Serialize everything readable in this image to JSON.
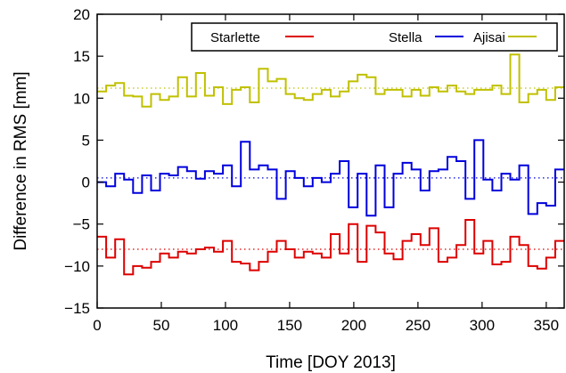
{
  "chart_data": {
    "type": "line",
    "style": "step",
    "xlabel": "Time [DOY 2013]",
    "ylabel": "Difference in RMS [mm]",
    "xlim": [
      0,
      364
    ],
    "ylim": [
      -15,
      20
    ],
    "xticks": [
      0,
      50,
      100,
      150,
      200,
      250,
      300,
      350
    ],
    "yticks": [
      -15,
      -10,
      -5,
      0,
      5,
      10,
      15,
      20
    ],
    "ytick_labels": [
      "−15",
      "−10",
      "−5",
      "0",
      "5",
      "10",
      "15",
      "20"
    ],
    "grid": false,
    "legend_position": "top-right",
    "step_width_days": 7,
    "x_start": 0,
    "series": [
      {
        "name": "Starlette",
        "color": "#dd0000",
        "mean": -8.0,
        "values": [
          -6.5,
          -9.0,
          -6.8,
          -11.0,
          -10.0,
          -10.2,
          -9.5,
          -8.5,
          -9.0,
          -8.3,
          -8.5,
          -8.0,
          -7.8,
          -8.3,
          -7.0,
          -9.5,
          -9.7,
          -10.5,
          -9.5,
          -8.3,
          -7.0,
          -8.0,
          -9.0,
          -8.3,
          -8.5,
          -9.0,
          -6.2,
          -8.5,
          -5.0,
          -9.5,
          -5.2,
          -6.0,
          -8.5,
          -9.2,
          -7.0,
          -6.2,
          -7.5,
          -5.5,
          -9.5,
          -9.0,
          -7.5,
          -4.5,
          -8.5,
          -7.0,
          -9.8,
          -9.5,
          -6.5,
          -7.5,
          -10.0,
          -10.3,
          -9.0,
          -7.0
        ]
      },
      {
        "name": "Stella",
        "color": "#0000dd",
        "mean": 0.5,
        "values": [
          0.0,
          -0.5,
          1.0,
          0.3,
          -1.3,
          0.8,
          -1.0,
          1.0,
          0.8,
          1.8,
          1.3,
          0.4,
          1.3,
          1.0,
          2.0,
          -0.5,
          4.8,
          1.5,
          2.0,
          1.5,
          -2.0,
          1.3,
          0.5,
          -0.5,
          0.5,
          0.0,
          1.0,
          2.5,
          -3.0,
          1.0,
          -4.0,
          2.0,
          -3.0,
          1.0,
          2.3,
          1.5,
          -1.0,
          1.3,
          1.5,
          3.0,
          2.5,
          -2.0,
          5.0,
          0.3,
          -1.0,
          1.0,
          0.3,
          2.0,
          -3.8,
          -2.5,
          -2.8,
          1.5
        ]
      },
      {
        "name": "Ajisai",
        "color": "#c0c000",
        "mean": 11.2,
        "values": [
          10.8,
          11.5,
          11.8,
          10.3,
          10.2,
          9.0,
          10.5,
          9.8,
          10.2,
          12.5,
          10.2,
          13.0,
          10.3,
          11.3,
          9.3,
          11.0,
          11.3,
          9.5,
          13.5,
          12.0,
          12.3,
          10.5,
          10.0,
          9.8,
          10.5,
          11.0,
          10.2,
          10.8,
          12.0,
          12.8,
          12.5,
          10.5,
          11.0,
          11.0,
          10.2,
          11.0,
          10.3,
          11.3,
          10.8,
          11.5,
          10.8,
          10.5,
          11.0,
          11.0,
          11.5,
          10.5,
          15.2,
          9.5,
          10.5,
          11.0,
          9.8,
          11.3
        ]
      }
    ]
  }
}
